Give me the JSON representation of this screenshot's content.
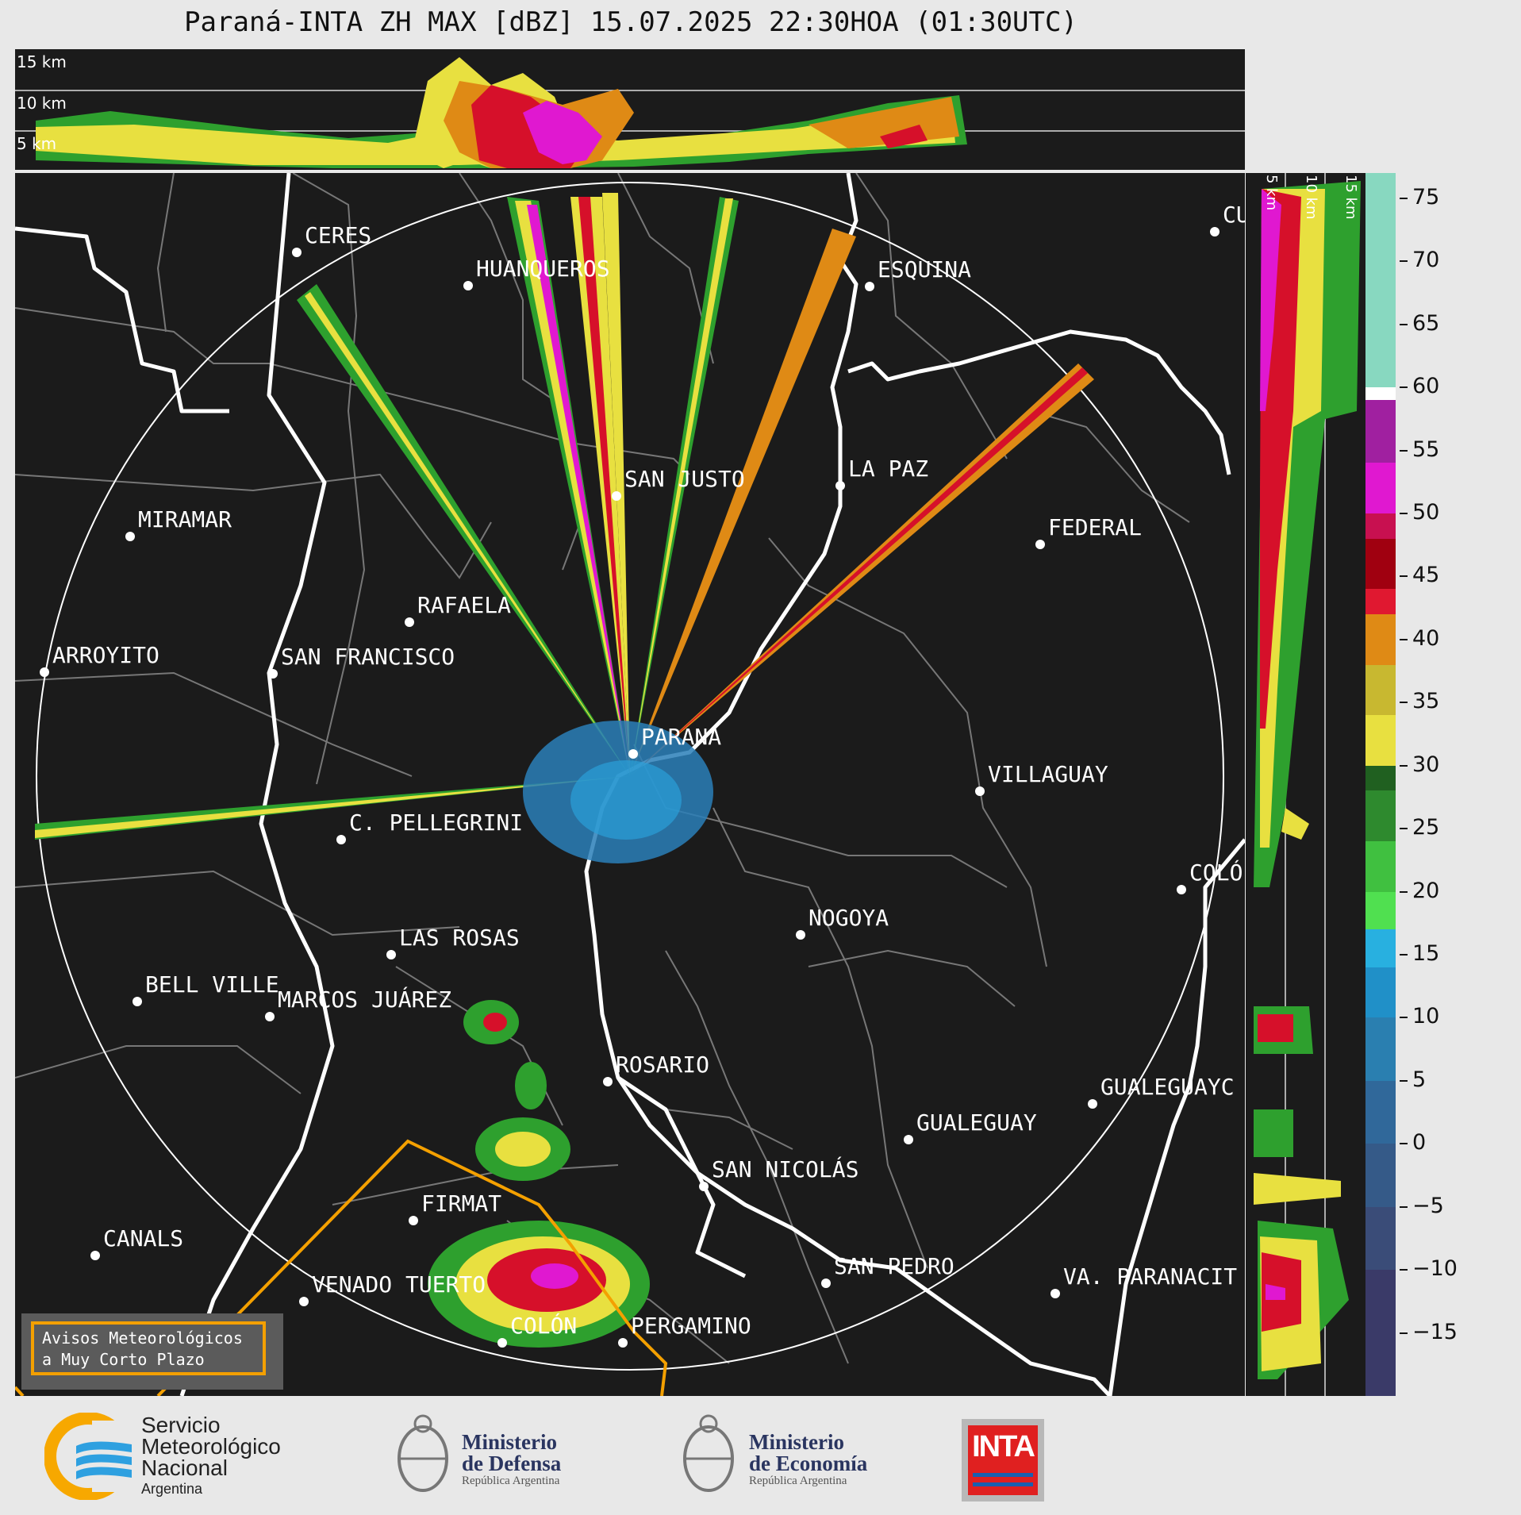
{
  "title": "Paraná-INTA ZH MAX [dBZ] 15.07.2025 22:30HOA (01:30UTC)",
  "top_cross_section": {
    "altitude_labels": [
      "15 km",
      "10 km",
      "5 km"
    ]
  },
  "right_cross_section": {
    "altitude_labels": [
      "5 km",
      "10 km",
      "15 km"
    ]
  },
  "cities": [
    {
      "name": "CERES"
    },
    {
      "name": "HUANQUEROS"
    },
    {
      "name": "ESQUINA"
    },
    {
      "name": "CU"
    },
    {
      "name": "SAN JUSTO"
    },
    {
      "name": "LA PAZ"
    },
    {
      "name": "MIRAMAR"
    },
    {
      "name": "FEDERAL"
    },
    {
      "name": "RAFAELA"
    },
    {
      "name": "ARROYITO"
    },
    {
      "name": "SAN FRANCISCO"
    },
    {
      "name": "PARANÁ"
    },
    {
      "name": "VILLAGUAY"
    },
    {
      "name": "C. PELLEGRINI"
    },
    {
      "name": "COLÓ"
    },
    {
      "name": "NOGOYA"
    },
    {
      "name": "LAS ROSAS"
    },
    {
      "name": "BELL VILLE"
    },
    {
      "name": "MARCOS JUÁREZ"
    },
    {
      "name": "ROSARIO"
    },
    {
      "name": "GUALEGUAYC"
    },
    {
      "name": "GUALEGUAY"
    },
    {
      "name": "SAN NICOLÁS"
    },
    {
      "name": "FIRMAT"
    },
    {
      "name": "CANALS"
    },
    {
      "name": "SAN PEDRO"
    },
    {
      "name": "VENADO TUERTO"
    },
    {
      "name": "VA. PARANACIT"
    },
    {
      "name": "COLÓN"
    },
    {
      "name": "PERGAMINO"
    }
  ],
  "warning_legend": {
    "line1": "Avisos Meteorológicos",
    "line2": "a Muy Corto Plazo",
    "color": "#f4a000"
  },
  "colorbar": {
    "min": -20,
    "max": 77,
    "ticks": [
      "75",
      "70",
      "65",
      "60",
      "55",
      "50",
      "45",
      "40",
      "35",
      "30",
      "25",
      "20",
      "15",
      "10",
      "5",
      "0",
      "−5",
      "−10",
      "−15"
    ],
    "tick_values": [
      75,
      70,
      65,
      60,
      55,
      50,
      45,
      40,
      35,
      30,
      25,
      20,
      15,
      10,
      5,
      0,
      -5,
      -10,
      -15
    ]
  },
  "logos": {
    "smn": {
      "line1": "Servicio",
      "line2": "Meteorológico",
      "line3": "Nacional",
      "line4": "Argentina"
    },
    "defensa": {
      "line1": "Ministerio",
      "line2": "de Defensa",
      "line3": "República Argentina"
    },
    "economia": {
      "line1": "Ministerio",
      "line2": "de Economía",
      "line3": "República Argentina"
    },
    "inta": {
      "text": "INTA"
    }
  }
}
